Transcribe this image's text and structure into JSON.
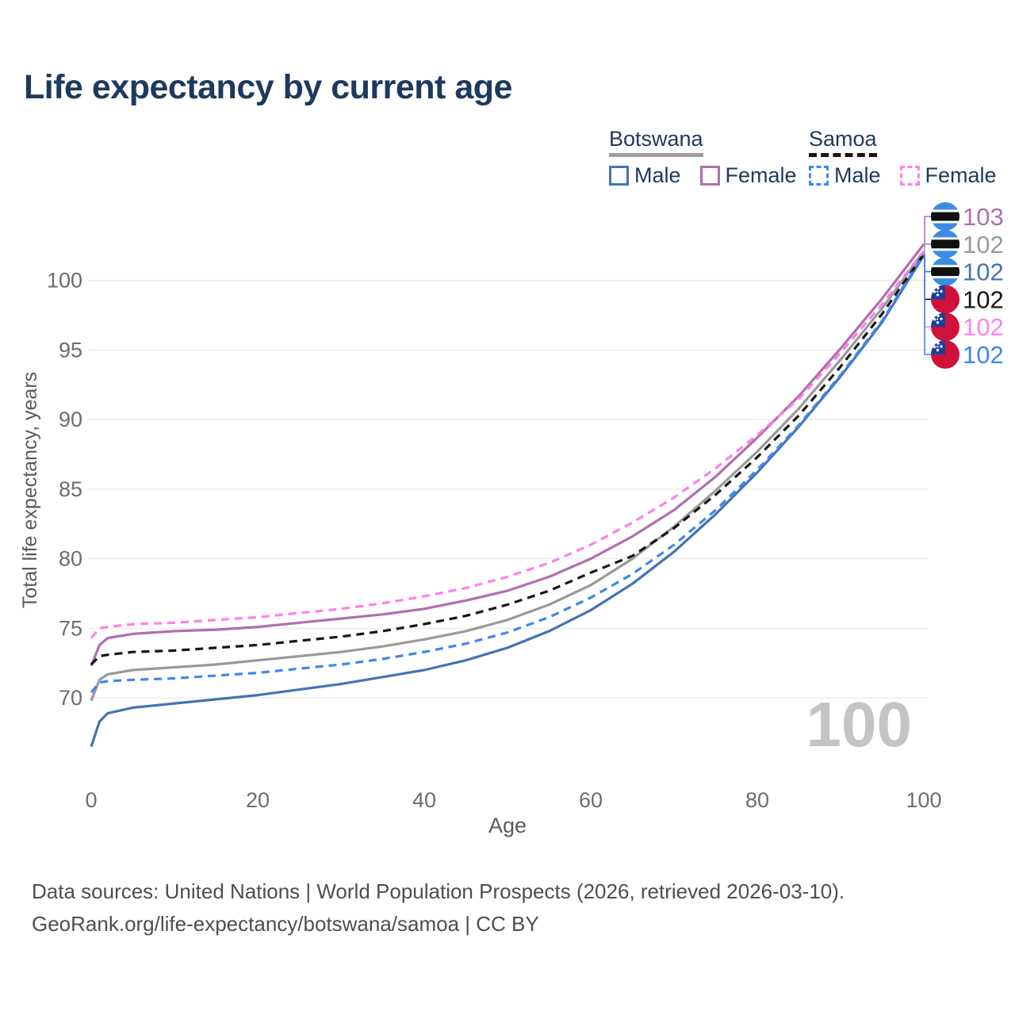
{
  "title": "Life expectancy by current age",
  "legend": {
    "groups": [
      {
        "label": "Botswana",
        "underline_style": "solid",
        "underline_color": "#9e9e9e",
        "items": [
          {
            "label": "Male",
            "color": "#4473b4",
            "style": "solid"
          },
          {
            "label": "Female",
            "color": "#b06fae",
            "style": "solid"
          }
        ]
      },
      {
        "label": "Samoa",
        "underline_style": "dashed",
        "underline_color": "#161616",
        "items": [
          {
            "label": "Male",
            "color": "#3d87f0",
            "style": "dashed"
          },
          {
            "label": "Female",
            "color": "#ff80e8",
            "style": "dashed"
          }
        ]
      }
    ]
  },
  "chart_data": {
    "type": "line",
    "title": "Life expectancy by current age",
    "xlabel": "Age",
    "ylabel": "Total life expectancy, years",
    "x_ticks": [
      0,
      20,
      40,
      60,
      80,
      100
    ],
    "y_ticks": [
      100,
      95,
      90,
      85,
      80,
      75,
      70
    ],
    "xlim": [
      0,
      100
    ],
    "ylim": [
      66,
      104
    ],
    "grid": "horizontal",
    "watermark": "100",
    "x": [
      0,
      1,
      2,
      5,
      10,
      15,
      20,
      25,
      30,
      35,
      40,
      45,
      50,
      55,
      60,
      65,
      70,
      75,
      80,
      85,
      90,
      95,
      100
    ],
    "series": [
      {
        "name": "Botswana Female",
        "country": "Botswana",
        "sex": "Female",
        "style": "solid",
        "color": "#b06fae",
        "flag": "botswana",
        "end_label": "103",
        "values": [
          72.3,
          73.8,
          74.3,
          74.6,
          74.8,
          74.9,
          75.1,
          75.4,
          75.7,
          76.0,
          76.4,
          77.0,
          77.7,
          78.7,
          80.0,
          81.6,
          83.5,
          85.9,
          88.7,
          91.7,
          95.1,
          98.7,
          102.6
        ]
      },
      {
        "name": "Botswana Both sexes",
        "country": "Botswana",
        "sex": "Both",
        "style": "solid",
        "color": "#9a9a9a",
        "flag": "botswana",
        "end_label": "102",
        "values": [
          69.8,
          71.3,
          71.7,
          72.0,
          72.2,
          72.4,
          72.7,
          73.0,
          73.3,
          73.7,
          74.2,
          74.8,
          75.6,
          76.7,
          78.1,
          80.0,
          82.3,
          84.9,
          87.7,
          90.8,
          94.3,
          98.0,
          102.1
        ]
      },
      {
        "name": "Botswana Male",
        "country": "Botswana",
        "sex": "Male",
        "style": "solid",
        "color": "#4473b4",
        "flag": "botswana",
        "end_label": "102",
        "values": [
          66.5,
          68.3,
          68.9,
          69.3,
          69.6,
          69.9,
          70.2,
          70.6,
          71.0,
          71.5,
          72.0,
          72.7,
          73.6,
          74.8,
          76.3,
          78.2,
          80.5,
          83.2,
          86.2,
          89.5,
          93.1,
          97.0,
          101.8
        ]
      },
      {
        "name": "Samoa Both sexes",
        "country": "Samoa",
        "sex": "Both",
        "style": "dashed",
        "color": "#161616",
        "flag": "samoa",
        "end_label": "102",
        "values": [
          72.4,
          73.0,
          73.1,
          73.3,
          73.4,
          73.6,
          73.8,
          74.1,
          74.4,
          74.8,
          75.3,
          75.9,
          76.7,
          77.7,
          79.0,
          80.2,
          82.2,
          84.6,
          87.3,
          90.3,
          93.8,
          97.6,
          101.9
        ]
      },
      {
        "name": "Samoa Female",
        "country": "Samoa",
        "sex": "Female",
        "style": "dashed",
        "color": "#ff80e8",
        "flag": "samoa",
        "end_label": "102",
        "values": [
          74.3,
          75.0,
          75.1,
          75.3,
          75.4,
          75.6,
          75.8,
          76.1,
          76.4,
          76.8,
          77.3,
          77.9,
          78.7,
          79.7,
          81.0,
          82.6,
          84.4,
          86.5,
          88.9,
          91.5,
          94.8,
          98.3,
          102.1
        ]
      },
      {
        "name": "Samoa Male",
        "country": "Samoa",
        "sex": "Male",
        "style": "dashed",
        "color": "#3d87f0",
        "flag": "samoa",
        "end_label": "102",
        "values": [
          70.4,
          71.1,
          71.2,
          71.3,
          71.4,
          71.6,
          71.8,
          72.1,
          72.4,
          72.8,
          73.3,
          73.9,
          74.7,
          75.8,
          77.2,
          78.9,
          81.0,
          83.5,
          86.4,
          89.6,
          93.2,
          97.1,
          101.9
        ]
      }
    ]
  },
  "colors": {
    "title_text": "#1d3a5e",
    "grid": "#eaeaea",
    "tick_text": "#6d6d6d",
    "axis_title_text": "#5a5a5a",
    "watermark": "#c4c4c4",
    "botswana_flag_blue": "#3c8ce4",
    "samoa_flag_red": "#d0123a",
    "samoa_flag_canton": "#1c3f9e"
  },
  "footer": {
    "line1": "Data sources: United Nations | World Population Prospects (2026, retrieved 2026-03-10).",
    "line2": "GeoRank.org/life-expectancy/botswana/samoa | CC BY"
  }
}
